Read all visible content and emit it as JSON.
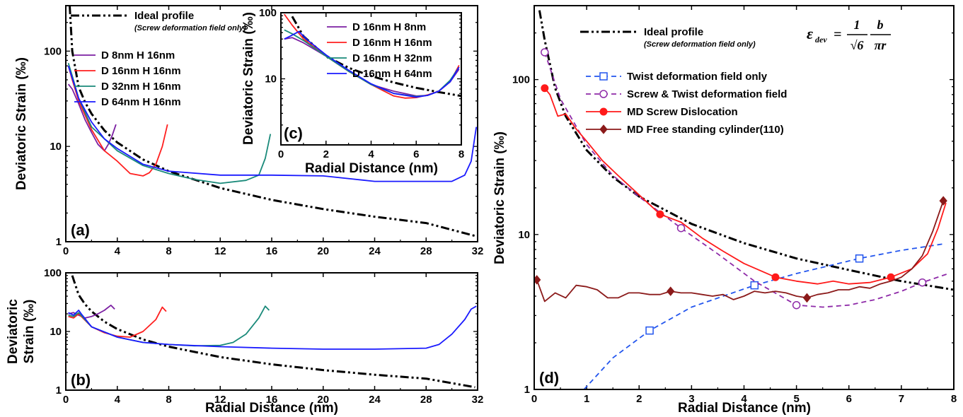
{
  "chart_data": [
    {
      "id": "a",
      "type": "line",
      "panel_label": "(a)",
      "x_scale": "linear",
      "y_scale": "log",
      "xlim": [
        0,
        32
      ],
      "ylim": [
        1,
        300
      ],
      "x_ticks": [
        0,
        4,
        8,
        12,
        16,
        20,
        24,
        28,
        32
      ],
      "y_ticks": [
        1,
        10,
        100
      ],
      "ylabel": "Deviatoric Strain (‰)",
      "xlabel": "",
      "legend": {
        "ideal_label": "Ideal profile",
        "ideal_sublabel": "(Screw deformation field only)",
        "placement": "top-left"
      },
      "series": [
        {
          "name": "Ideal profile",
          "color": "#000000",
          "style": "dashdot",
          "x": [
            0.3,
            0.5,
            1,
            1.5,
            2,
            3,
            4,
            6,
            8,
            12,
            16,
            20,
            24,
            28,
            31.8
          ],
          "y": [
            300,
            100,
            42,
            29,
            22,
            14.7,
            11,
            7.3,
            5.5,
            3.66,
            2.75,
            2.2,
            1.83,
            1.57,
            1.15
          ]
        },
        {
          "name": "D   8nm  H 16nm",
          "color": "#7b1fa2",
          "style": "solid",
          "x": [
            0.2,
            0.5,
            1,
            1.5,
            2,
            2.5,
            3,
            3.3,
            3.6,
            3.9
          ],
          "y": [
            45,
            40,
            28,
            19,
            14,
            10.5,
            9,
            10.5,
            13,
            17
          ]
        },
        {
          "name": "D 16nm  H 16nm",
          "color": "#ff1f1f",
          "style": "solid",
          "x": [
            0.2,
            0.5,
            1,
            2,
            3,
            4,
            5,
            6,
            6.5,
            7,
            7.5,
            7.9
          ],
          "y": [
            70,
            50,
            30,
            15,
            9,
            7,
            5.2,
            4.9,
            5.3,
            6.5,
            10,
            17
          ]
        },
        {
          "name": "D 32nm  H 16nm",
          "color": "#1a8a7a",
          "style": "solid",
          "x": [
            0.2,
            0.5,
            1,
            2,
            4,
            6,
            8,
            10,
            12,
            14,
            15,
            15.5,
            15.9
          ],
          "y": [
            75,
            55,
            32,
            16,
            9,
            6.3,
            5.2,
            4.5,
            4.1,
            4.4,
            5,
            7.5,
            13.5
          ]
        },
        {
          "name": "D 64nm  H 16nm",
          "color": "#1a1aff",
          "style": "solid",
          "x": [
            0.2,
            0.5,
            1,
            2,
            3,
            4,
            6,
            8,
            12,
            16,
            20,
            24,
            28,
            30,
            31,
            31.5,
            31.9
          ],
          "y": [
            70,
            52,
            32,
            18,
            12,
            9.5,
            6.5,
            5.5,
            5,
            5,
            4.9,
            4.3,
            4.3,
            4.3,
            5,
            7,
            16
          ]
        }
      ]
    },
    {
      "id": "b",
      "type": "line",
      "panel_label": "(b)",
      "x_scale": "linear",
      "y_scale": "log",
      "xlim": [
        0,
        32
      ],
      "ylim": [
        1,
        100
      ],
      "x_ticks": [
        0,
        4,
        8,
        12,
        16,
        20,
        24,
        28,
        32
      ],
      "y_ticks": [
        1,
        10,
        100
      ],
      "ylabel_line1": "Deviatoric",
      "ylabel_line2": "Strain (‰)",
      "xlabel": "Radial Distance (nm)",
      "series": [
        {
          "name": "Ideal profile",
          "color": "#000000",
          "style": "dashdot",
          "x": [
            0.5,
            1,
            1.5,
            2,
            3,
            4,
            6,
            8,
            12,
            16,
            20,
            24,
            28,
            31.8
          ],
          "y": [
            90,
            42,
            29,
            22,
            14.7,
            11,
            7.3,
            5.5,
            3.66,
            2.75,
            2.2,
            1.83,
            1.57,
            1.12
          ]
        },
        {
          "name": "D   8nm  H 16nm",
          "color": "#7b1fa2",
          "style": "solid",
          "x": [
            0.2,
            0.6,
            1,
            1.5,
            2,
            2.5,
            3,
            3.5,
            3.8
          ],
          "y": [
            20,
            21,
            19,
            17,
            18,
            20,
            23,
            28,
            24
          ]
        },
        {
          "name": "D 16nm  H 16nm",
          "color": "#ff1f1f",
          "style": "solid",
          "x": [
            0.2,
            0.6,
            1,
            2,
            3,
            4,
            5,
            6,
            7,
            7.5,
            7.8
          ],
          "y": [
            18,
            17,
            20,
            12,
            9.5,
            8.3,
            8,
            10,
            16,
            26,
            22
          ]
        },
        {
          "name": "D 32nm  H 16nm",
          "color": "#1a8a7a",
          "style": "solid",
          "x": [
            0.2,
            0.6,
            1,
            2,
            4,
            6,
            8,
            10,
            12,
            13,
            14,
            15,
            15.5,
            15.8
          ],
          "y": [
            19,
            18,
            21,
            12,
            8,
            6.5,
            6,
            5.7,
            5.8,
            6.5,
            9,
            17,
            27,
            23
          ]
        },
        {
          "name": "D 64nm  H 16nm",
          "color": "#1a1aff",
          "style": "solid",
          "x": [
            0.2,
            0.6,
            1,
            1.2,
            2,
            4,
            6,
            8,
            12,
            16,
            20,
            24,
            28,
            29,
            30,
            31,
            31.5,
            31.9
          ],
          "y": [
            21,
            19,
            23,
            20,
            12,
            8,
            6.5,
            6,
            5.5,
            5.2,
            5,
            5,
            5.2,
            6,
            9,
            16,
            24,
            27
          ]
        }
      ]
    },
    {
      "id": "c",
      "type": "line",
      "panel_label": "(c)",
      "x_scale": "linear",
      "y_scale": "log",
      "xlim": [
        0,
        8
      ],
      "ylim": [
        1,
        100
      ],
      "x_ticks": [
        0,
        2,
        4,
        6,
        8
      ],
      "y_ticks": [
        10,
        100
      ],
      "ylabel": "Deviatoric Strain (‰)",
      "xlabel": "Radial Distance (nm)",
      "series": [
        {
          "name": "Ideal profile",
          "color": "#000000",
          "style": "dashdot",
          "x": [
            0.5,
            1,
            2,
            3,
            4,
            5,
            6,
            7,
            8
          ],
          "y": [
            88,
            44,
            22,
            14.7,
            11,
            8.8,
            7.3,
            6.3,
            5.5
          ]
        },
        {
          "name": "D 16nm  H   8nm",
          "color": "#7b1fa2",
          "style": "solid",
          "x": [
            0.15,
            0.5,
            1,
            2,
            3,
            4,
            5,
            6,
            6.5,
            7,
            7.5,
            7.9
          ],
          "y": [
            40,
            42,
            35,
            22,
            13,
            8.2,
            6.5,
            5.5,
            5.6,
            6.5,
            9,
            14
          ]
        },
        {
          "name": "D 16nm  H 16nm",
          "color": "#ff1f1f",
          "style": "solid",
          "x": [
            0.15,
            0.5,
            1,
            2,
            3,
            4,
            5,
            5.5,
            6,
            6.5,
            7,
            7.5,
            7.9
          ],
          "y": [
            95,
            65,
            40,
            22,
            13,
            8.2,
            5.5,
            5.1,
            5.2,
            5.7,
            6.5,
            9,
            16
          ]
        },
        {
          "name": "D 16nm  H 32nm",
          "color": "#1a8a7a",
          "style": "solid",
          "x": [
            0.15,
            0.5,
            1,
            2,
            3,
            4,
            5,
            6,
            6.5,
            7,
            7.5,
            7.9
          ],
          "y": [
            55,
            48,
            38,
            22,
            13,
            8.2,
            6,
            5.4,
            5.6,
            6.5,
            9.5,
            15
          ]
        },
        {
          "name": "D 16nm  H 64nm",
          "color": "#1a1aff",
          "style": "solid",
          "x": [
            0.15,
            0.4,
            0.8,
            1.2,
            2,
            3,
            4,
            5,
            6,
            6.5,
            7,
            7.5,
            7.9
          ],
          "y": [
            40,
            44,
            52,
            38,
            23,
            13.5,
            8.4,
            6,
            5.3,
            5.6,
            6.5,
            9,
            15
          ]
        }
      ]
    },
    {
      "id": "d",
      "type": "line",
      "panel_label": "(d)",
      "x_scale": "linear",
      "y_scale": "log",
      "xlim": [
        0,
        8
      ],
      "ylim": [
        1,
        300
      ],
      "x_ticks": [
        0,
        1,
        2,
        3,
        4,
        5,
        6,
        7,
        8
      ],
      "y_ticks": [
        1,
        10,
        100
      ],
      "ylabel": "Deviatoric Strain (‰)",
      "xlabel": "Radial Distance (nm)",
      "legend": {
        "ideal_label": "Ideal profile",
        "ideal_sublabel": "(Screw deformation field only)",
        "placement": "top"
      },
      "formula": {
        "lhs": "ε",
        "lhs_sub": "dev",
        "equals": "=",
        "num1": "1",
        "den1": "√6",
        "num2": "b",
        "den2": "πr"
      },
      "series": [
        {
          "name": "Ideal profile",
          "color": "#000000",
          "style": "dashdot",
          "marker": "none",
          "x": [
            0.1,
            0.2,
            0.4,
            0.6,
            1,
            1.5,
            2,
            3,
            4,
            5,
            6,
            7,
            8
          ],
          "y": [
            280,
            180,
            88,
            58,
            35,
            23.5,
            17.6,
            11.7,
            8.8,
            7,
            5.9,
            5,
            4.4
          ]
        },
        {
          "name": "Twist  deformation field only",
          "color": "#2255ee",
          "style": "dashed",
          "marker": "open-square",
          "x": [
            0.95,
            1.5,
            2.2,
            3,
            4.2,
            5,
            6.2,
            7,
            7.8
          ],
          "y": [
            1,
            1.6,
            2.4,
            3.4,
            4.7,
            5.6,
            7,
            7.9,
            8.7
          ],
          "marker_x": [
            2.2,
            4.2,
            6.2
          ]
        },
        {
          "name": "Screw & Twist deformation field",
          "color": "#8e2aa8",
          "style": "dashed",
          "marker": "open-circle",
          "x": [
            0.2,
            0.5,
            1,
            1.5,
            2,
            2.8,
            3.5,
            4.2,
            5,
            5.5,
            6,
            6.5,
            7,
            7.4,
            7.9
          ],
          "y": [
            150,
            75,
            38,
            24,
            17.5,
            11,
            7.5,
            5,
            3.5,
            3.4,
            3.5,
            3.8,
            4.3,
            4.9,
            5.6
          ],
          "marker_x": [
            0.2,
            2.8,
            5,
            7.4
          ]
        },
        {
          "name": "MD Screw Dislocation",
          "color": "#ff1a1a",
          "style": "solid",
          "marker": "filled-circle",
          "x": [
            0.2,
            0.3,
            0.45,
            0.6,
            0.8,
            1,
            1.3,
            1.6,
            2,
            2.4,
            2.8,
            3.2,
            3.6,
            4,
            4.6,
            5,
            5.4,
            5.7,
            6,
            6.4,
            6.8,
            7.2,
            7.5,
            7.7,
            7.85
          ],
          "y": [
            88,
            80,
            58,
            60,
            48,
            40,
            30,
            24,
            18,
            13.5,
            12,
            9.5,
            7.8,
            6.5,
            5.3,
            5,
            4.8,
            5,
            4.8,
            4.9,
            5.3,
            6,
            7.5,
            11,
            16
          ],
          "marker_x": [
            0.2,
            2.4,
            4.6,
            6.8
          ]
        },
        {
          "name": "MD Free standing cylinder(110)",
          "color": "#8b1a1a",
          "style": "solid",
          "marker": "filled-diamond",
          "x": [
            0.05,
            0.2,
            0.4,
            0.6,
            0.8,
            1,
            1.2,
            1.4,
            1.6,
            1.8,
            2,
            2.2,
            2.4,
            2.6,
            2.8,
            3,
            3.2,
            3.4,
            3.6,
            3.8,
            4,
            4.2,
            4.4,
            4.6,
            4.8,
            5,
            5.2,
            5.4,
            5.6,
            5.8,
            6,
            6.2,
            6.4,
            6.6,
            6.8,
            7,
            7.2,
            7.4,
            7.6,
            7.8
          ],
          "y": [
            5.1,
            3.7,
            4.2,
            3.9,
            4.7,
            4.6,
            4.4,
            3.9,
            3.9,
            4.2,
            4.2,
            4.1,
            4.1,
            4.3,
            4.2,
            4.2,
            4.1,
            4.0,
            4.1,
            3.8,
            4.0,
            4.3,
            4.2,
            4.3,
            4.2,
            4.0,
            3.9,
            4.1,
            4.2,
            4.4,
            4.4,
            4.6,
            4.5,
            4.8,
            5.0,
            5.3,
            6.0,
            7.3,
            10.5,
            16.5
          ],
          "marker_x": [
            0.05,
            2.6,
            5.2,
            7.8
          ]
        }
      ]
    }
  ]
}
